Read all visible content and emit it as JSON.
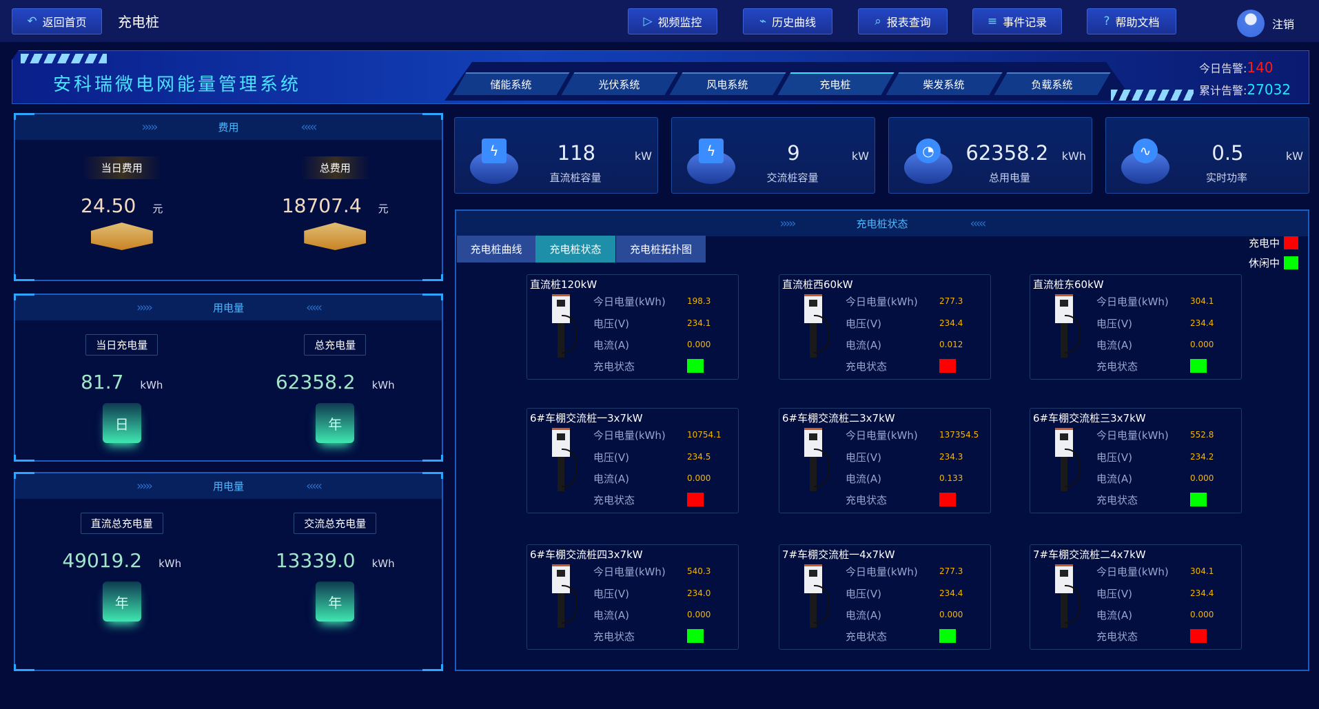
{
  "header": {
    "back_label": "返回首页",
    "page_title": "充电桩",
    "nav": [
      {
        "label": "视频监控",
        "icon": "video-icon"
      },
      {
        "label": "历史曲线",
        "icon": "chart-icon"
      },
      {
        "label": "报表查询",
        "icon": "search-icon"
      },
      {
        "label": "事件记录",
        "icon": "document-icon"
      },
      {
        "label": "帮助文档",
        "icon": "help-icon"
      }
    ],
    "logout_label": "注销"
  },
  "banner": {
    "system_title": "安科瑞微电网能量管理系统",
    "tabs": [
      "储能系统",
      "光伏系统",
      "风电系统",
      "充电桩",
      "柴发系统",
      "负载系统"
    ],
    "active_tab": "充电桩",
    "today_alarm_label": "今日告警:",
    "today_alarm_value": "140",
    "total_alarm_label": "累计告警:",
    "total_alarm_value": "27032"
  },
  "left": {
    "cost": {
      "title": "费用",
      "items": [
        {
          "label": "当日费用",
          "value": "24.50",
          "unit": "元"
        },
        {
          "label": "总费用",
          "value": "18707.4",
          "unit": "元"
        }
      ]
    },
    "usage1": {
      "title": "用电量",
      "items": [
        {
          "label": "当日充电量",
          "value": "81.7",
          "unit": "kWh",
          "icon": "日"
        },
        {
          "label": "总充电量",
          "value": "62358.2",
          "unit": "kWh",
          "icon": "年"
        }
      ]
    },
    "usage2": {
      "title": "用电量",
      "items": [
        {
          "label": "直流总充电量",
          "value": "49019.2",
          "unit": "kWh",
          "icon": "年"
        },
        {
          "label": "交流总充电量",
          "value": "13339.0",
          "unit": "kWh",
          "icon": "年"
        }
      ]
    }
  },
  "stats": [
    {
      "value": "118",
      "unit": "kW",
      "label": "直流桩容量",
      "icon": "battery-bolt-icon"
    },
    {
      "value": "9",
      "unit": "kW",
      "label": "交流桩容量",
      "icon": "battery-bolt-icon"
    },
    {
      "value": "62358.2",
      "unit": "kWh",
      "label": "总用电量",
      "icon": "meter-icon"
    },
    {
      "value": "0.5",
      "unit": "kW",
      "label": "实时功率",
      "icon": "pulse-icon"
    }
  ],
  "status_panel": {
    "title": "充电桩状态",
    "tabs": [
      "充电桩曲线",
      "充电桩状态",
      "充电桩拓扑图"
    ],
    "active_tab": "充电桩状态",
    "legend": [
      {
        "label": "充电中",
        "color": "#ff0000"
      },
      {
        "label": "休闲中",
        "color": "#00ff00"
      }
    ],
    "field_labels": {
      "today": "今日电量(kWh)",
      "voltage": "电压(V)",
      "current": "电流(A)",
      "status": "充电状态"
    },
    "chargers": [
      {
        "name": "直流桩120kW",
        "today": "198.3",
        "voltage": "234.1",
        "current": "0.000",
        "status": "idle"
      },
      {
        "name": "直流桩西60kW",
        "today": "277.3",
        "voltage": "234.4",
        "current": "0.012",
        "status": "charging"
      },
      {
        "name": "直流桩东60kW",
        "today": "304.1",
        "voltage": "234.4",
        "current": "0.000",
        "status": "idle"
      },
      {
        "name": "6#车棚交流桩一3x7kW",
        "today": "10754.1",
        "voltage": "234.5",
        "current": "0.000",
        "status": "charging"
      },
      {
        "name": "6#车棚交流桩二3x7kW",
        "today": "137354.5",
        "voltage": "234.3",
        "current": "0.133",
        "status": "charging"
      },
      {
        "name": "6#车棚交流桩三3x7kW",
        "today": "552.8",
        "voltage": "234.2",
        "current": "0.000",
        "status": "idle"
      },
      {
        "name": "6#车棚交流桩四3x7kW",
        "today": "540.3",
        "voltage": "234.0",
        "current": "0.000",
        "status": "idle"
      },
      {
        "name": "7#车棚交流桩一4x7kW",
        "today": "277.3",
        "voltage": "234.4",
        "current": "0.000",
        "status": "idle"
      },
      {
        "name": "7#车棚交流桩二4x7kW",
        "today": "304.1",
        "voltage": "234.4",
        "current": "0.000",
        "status": "charging"
      }
    ]
  },
  "colors": {
    "charging": "#ff0000",
    "idle": "#00ff00",
    "accent": "#48e4ff",
    "alarm_today": "#ff1a1a",
    "alarm_total": "#20e8ff"
  }
}
